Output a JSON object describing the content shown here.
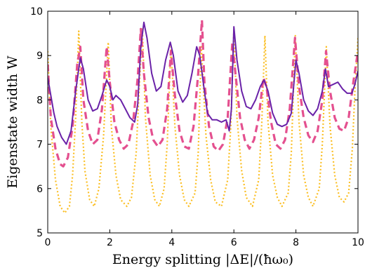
{
  "chart_data": {
    "type": "line",
    "xlabel": "Energy splitting |ΔE|/(ħω₀)",
    "ylabel": "Eigenstate width W",
    "xlim": [
      0,
      10
    ],
    "ylim": [
      5,
      10
    ],
    "xticks": [
      "0",
      "2",
      "4",
      "6",
      "8",
      "10"
    ],
    "yticks": [
      "5",
      "6",
      "7",
      "8",
      "9",
      "10"
    ],
    "grid": false,
    "series": [
      {
        "style": "dotted",
        "color": "#fbbf24",
        "points": [
          [
            0,
            9.1
          ],
          [
            0.1,
            7.4
          ],
          [
            0.25,
            6.2
          ],
          [
            0.4,
            5.6
          ],
          [
            0.55,
            5.45
          ],
          [
            0.7,
            5.6
          ],
          [
            0.8,
            6.3
          ],
          [
            0.9,
            7.6
          ],
          [
            1.0,
            9.55
          ],
          [
            1.1,
            7.5
          ],
          [
            1.2,
            6.4
          ],
          [
            1.35,
            5.75
          ],
          [
            1.5,
            5.6
          ],
          [
            1.65,
            6.0
          ],
          [
            1.8,
            7.2
          ],
          [
            1.95,
            9.3
          ],
          [
            2.05,
            7.4
          ],
          [
            2.2,
            6.3
          ],
          [
            2.35,
            5.75
          ],
          [
            2.55,
            5.6
          ],
          [
            2.7,
            5.8
          ],
          [
            2.85,
            6.8
          ],
          [
            2.95,
            8.3
          ],
          [
            3.05,
            9.6
          ],
          [
            3.15,
            7.6
          ],
          [
            3.3,
            6.3
          ],
          [
            3.45,
            5.75
          ],
          [
            3.6,
            5.6
          ],
          [
            3.75,
            6.0
          ],
          [
            3.85,
            7.0
          ],
          [
            3.97,
            9.2
          ],
          [
            4.1,
            7.4
          ],
          [
            4.25,
            6.3
          ],
          [
            4.4,
            5.75
          ],
          [
            4.55,
            5.6
          ],
          [
            4.75,
            5.9
          ],
          [
            4.85,
            6.8
          ],
          [
            4.95,
            9.2
          ],
          [
            5.1,
            7.2
          ],
          [
            5.25,
            6.2
          ],
          [
            5.4,
            5.7
          ],
          [
            5.6,
            5.6
          ],
          [
            5.8,
            6.2
          ],
          [
            5.9,
            7.4
          ],
          [
            6.0,
            9.6
          ],
          [
            6.1,
            7.6
          ],
          [
            6.25,
            6.4
          ],
          [
            6.4,
            5.8
          ],
          [
            6.6,
            5.6
          ],
          [
            6.8,
            6.2
          ],
          [
            6.9,
            7.5
          ],
          [
            7.0,
            9.45
          ],
          [
            7.1,
            7.5
          ],
          [
            7.25,
            6.3
          ],
          [
            7.4,
            5.8
          ],
          [
            7.55,
            5.6
          ],
          [
            7.75,
            5.9
          ],
          [
            7.85,
            6.8
          ],
          [
            7.98,
            9.45
          ],
          [
            8.1,
            7.5
          ],
          [
            8.25,
            6.3
          ],
          [
            8.4,
            5.8
          ],
          [
            8.55,
            5.6
          ],
          [
            8.75,
            6.0
          ],
          [
            8.85,
            7.0
          ],
          [
            8.98,
            9.2
          ],
          [
            9.1,
            7.4
          ],
          [
            9.25,
            6.3
          ],
          [
            9.4,
            5.8
          ],
          [
            9.55,
            5.7
          ],
          [
            9.7,
            5.9
          ],
          [
            9.82,
            6.9
          ],
          [
            9.9,
            8.2
          ],
          [
            10.0,
            9.4
          ]
        ]
      },
      {
        "style": "dashed",
        "color": "#e4508f",
        "points": [
          [
            0,
            8.8
          ],
          [
            0.1,
            7.6
          ],
          [
            0.25,
            6.9
          ],
          [
            0.4,
            6.55
          ],
          [
            0.5,
            6.5
          ],
          [
            0.65,
            6.7
          ],
          [
            0.8,
            7.4
          ],
          [
            0.95,
            8.8
          ],
          [
            1.05,
            9.2
          ],
          [
            1.15,
            8.0
          ],
          [
            1.3,
            7.3
          ],
          [
            1.45,
            7.0
          ],
          [
            1.6,
            7.1
          ],
          [
            1.75,
            7.8
          ],
          [
            1.9,
            9.2
          ],
          [
            2.0,
            8.4
          ],
          [
            2.15,
            7.5
          ],
          [
            2.3,
            7.1
          ],
          [
            2.45,
            6.9
          ],
          [
            2.6,
            7.0
          ],
          [
            2.75,
            7.5
          ],
          [
            2.9,
            8.5
          ],
          [
            3.0,
            9.6
          ],
          [
            3.1,
            8.6
          ],
          [
            3.25,
            7.6
          ],
          [
            3.4,
            7.1
          ],
          [
            3.55,
            6.95
          ],
          [
            3.7,
            7.1
          ],
          [
            3.85,
            7.8
          ],
          [
            3.97,
            9.1
          ],
          [
            4.1,
            8.1
          ],
          [
            4.25,
            7.3
          ],
          [
            4.4,
            6.95
          ],
          [
            4.55,
            6.9
          ],
          [
            4.7,
            7.4
          ],
          [
            4.85,
            8.6
          ],
          [
            4.97,
            9.8
          ],
          [
            5.05,
            8.4
          ],
          [
            5.2,
            7.4
          ],
          [
            5.35,
            6.95
          ],
          [
            5.5,
            6.85
          ],
          [
            5.65,
            7.0
          ],
          [
            5.8,
            7.6
          ],
          [
            5.95,
            9.3
          ],
          [
            6.05,
            8.6
          ],
          [
            6.2,
            7.6
          ],
          [
            6.35,
            7.1
          ],
          [
            6.5,
            6.9
          ],
          [
            6.65,
            7.1
          ],
          [
            6.8,
            7.6
          ],
          [
            6.95,
            8.5
          ],
          [
            7.05,
            8.3
          ],
          [
            7.2,
            7.5
          ],
          [
            7.35,
            7.0
          ],
          [
            7.5,
            6.9
          ],
          [
            7.65,
            7.1
          ],
          [
            7.8,
            7.8
          ],
          [
            7.97,
            9.4
          ],
          [
            8.1,
            8.3
          ],
          [
            8.25,
            7.6
          ],
          [
            8.4,
            7.2
          ],
          [
            8.55,
            7.05
          ],
          [
            8.7,
            7.3
          ],
          [
            8.85,
            8.0
          ],
          [
            8.97,
            9.1
          ],
          [
            9.1,
            8.2
          ],
          [
            9.25,
            7.6
          ],
          [
            9.4,
            7.35
          ],
          [
            9.55,
            7.3
          ],
          [
            9.7,
            7.6
          ],
          [
            9.85,
            8.4
          ],
          [
            10.0,
            9.1
          ]
        ]
      },
      {
        "style": "solid",
        "color": "#6a22a8",
        "points": [
          [
            0,
            8.5
          ],
          [
            0.1,
            8.1
          ],
          [
            0.2,
            7.7
          ],
          [
            0.3,
            7.4
          ],
          [
            0.45,
            7.15
          ],
          [
            0.6,
            7.0
          ],
          [
            0.75,
            7.3
          ],
          [
            0.9,
            8.2
          ],
          [
            1.05,
            8.95
          ],
          [
            1.15,
            8.7
          ],
          [
            1.3,
            8.0
          ],
          [
            1.45,
            7.75
          ],
          [
            1.6,
            7.8
          ],
          [
            1.75,
            8.1
          ],
          [
            1.9,
            8.45
          ],
          [
            2.0,
            8.3
          ],
          [
            2.1,
            8.0
          ],
          [
            2.2,
            8.1
          ],
          [
            2.35,
            8.0
          ],
          [
            2.5,
            7.8
          ],
          [
            2.65,
            7.6
          ],
          [
            2.8,
            7.5
          ],
          [
            2.9,
            7.9
          ],
          [
            3.0,
            9.2
          ],
          [
            3.1,
            9.75
          ],
          [
            3.2,
            9.4
          ],
          [
            3.35,
            8.6
          ],
          [
            3.5,
            8.2
          ],
          [
            3.65,
            8.3
          ],
          [
            3.8,
            8.9
          ],
          [
            3.95,
            9.3
          ],
          [
            4.05,
            9.0
          ],
          [
            4.2,
            8.2
          ],
          [
            4.35,
            7.95
          ],
          [
            4.5,
            8.1
          ],
          [
            4.65,
            8.6
          ],
          [
            4.8,
            9.2
          ],
          [
            4.9,
            9.0
          ],
          [
            5.05,
            8.2
          ],
          [
            5.15,
            7.7
          ],
          [
            5.3,
            7.55
          ],
          [
            5.45,
            7.55
          ],
          [
            5.6,
            7.5
          ],
          [
            5.75,
            7.55
          ],
          [
            5.85,
            7.3
          ],
          [
            5.92,
            7.8
          ],
          [
            6.0,
            9.65
          ],
          [
            6.1,
            8.9
          ],
          [
            6.25,
            8.2
          ],
          [
            6.4,
            7.85
          ],
          [
            6.55,
            7.8
          ],
          [
            6.7,
            8.0
          ],
          [
            6.85,
            8.3
          ],
          [
            6.97,
            8.45
          ],
          [
            7.1,
            8.2
          ],
          [
            7.25,
            7.7
          ],
          [
            7.4,
            7.45
          ],
          [
            7.55,
            7.4
          ],
          [
            7.7,
            7.45
          ],
          [
            7.85,
            7.7
          ],
          [
            8.0,
            8.9
          ],
          [
            8.1,
            8.6
          ],
          [
            8.25,
            8.0
          ],
          [
            8.4,
            7.75
          ],
          [
            8.55,
            7.65
          ],
          [
            8.7,
            7.8
          ],
          [
            8.85,
            8.2
          ],
          [
            8.95,
            8.7
          ],
          [
            9.05,
            8.3
          ],
          [
            9.2,
            8.35
          ],
          [
            9.35,
            8.4
          ],
          [
            9.5,
            8.25
          ],
          [
            9.65,
            8.15
          ],
          [
            9.8,
            8.15
          ],
          [
            9.9,
            8.35
          ],
          [
            10.0,
            8.65
          ]
        ]
      }
    ]
  }
}
